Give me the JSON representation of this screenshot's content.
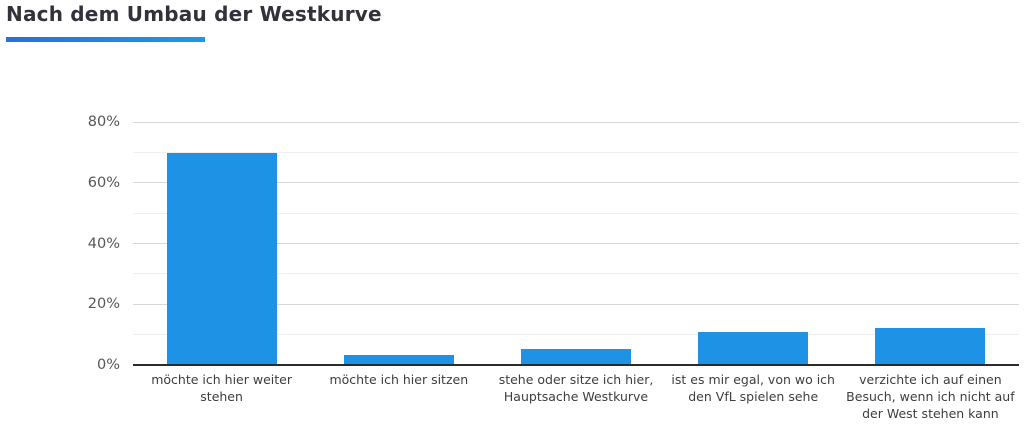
{
  "header": {
    "title": "Nach dem Umbau der Westkurve"
  },
  "chart_data": {
    "type": "bar",
    "title": "Nach dem Umbau der Westkurve",
    "categories": [
      "möchte ich hier weiter stehen",
      "möchte ich hier sitzen",
      "stehe oder sitze ich hier, Hauptsache Westkurve",
      "ist es mir egal, von wo ich den VfL spielen sehe",
      "verzichte ich auf einen Besuch, wenn ich nicht auf der West stehen kann"
    ],
    "values": [
      69.5,
      3,
      5,
      10.5,
      12
    ],
    "unit": "%",
    "xlabel": "",
    "ylabel": "",
    "ylim": [
      0,
      80
    ],
    "grid": true,
    "grid_step": 10,
    "ytick_step": 20,
    "ytick_labels": [
      "0%",
      "20%",
      "40%",
      "60%",
      "80%"
    ],
    "legend": false
  },
  "colors": {
    "bar": "#1e93e5",
    "accent_gradient_start": "#2a6fdb",
    "accent_gradient_end": "#1f97e7",
    "title_text": "#31323c",
    "axis_line": "#2b2b2b",
    "grid_major": "#d8d8d8",
    "grid_minor": "#efefef",
    "ytick_text": "#575757",
    "xtick_text": "#3e3e3e",
    "background": "#ffffff"
  }
}
